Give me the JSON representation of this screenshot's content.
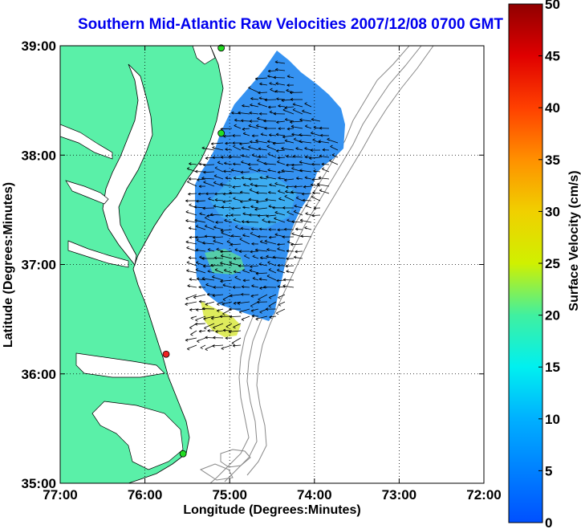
{
  "chart_data": {
    "type": "heatmap",
    "title": "Southern Mid-Atlantic Raw Velocities 2007/12/08 0700 GMT",
    "xlabel": "Longitude (Degrees:Minutes)",
    "ylabel": "Latitude (Degrees:Minutes)",
    "x_ticks": [
      "77:00",
      "76:00",
      "75:00",
      "74:00",
      "73:00",
      "72:00"
    ],
    "y_ticks": [
      "39:00",
      "38:00",
      "37:00",
      "36:00",
      "35:00"
    ],
    "xlim": [
      -77,
      -72
    ],
    "ylim": [
      35,
      39
    ],
    "grid": true,
    "colorbar": {
      "label": "Surface Velocity (cm/s)",
      "range": [
        0,
        50
      ],
      "ticks": [
        "50",
        "45",
        "40",
        "35",
        "30",
        "25",
        "20",
        "15",
        "10",
        "5",
        "0"
      ]
    },
    "stations": [
      {
        "lon": -75.1,
        "lat": 38.98,
        "color": "#22dd22"
      },
      {
        "lon": -75.1,
        "lat": 38.2,
        "color": "#22dd22"
      },
      {
        "lon": -75.75,
        "lat": 36.18,
        "color": "#ee2222"
      },
      {
        "lon": -75.55,
        "lat": 35.27,
        "color": "#22dd22"
      }
    ]
  },
  "colors": {
    "land": "#5af0a8",
    "title": "#0000ee",
    "bathymetry": "#888888",
    "field": "#2a8cf0",
    "hotspot": "#e0e030"
  }
}
